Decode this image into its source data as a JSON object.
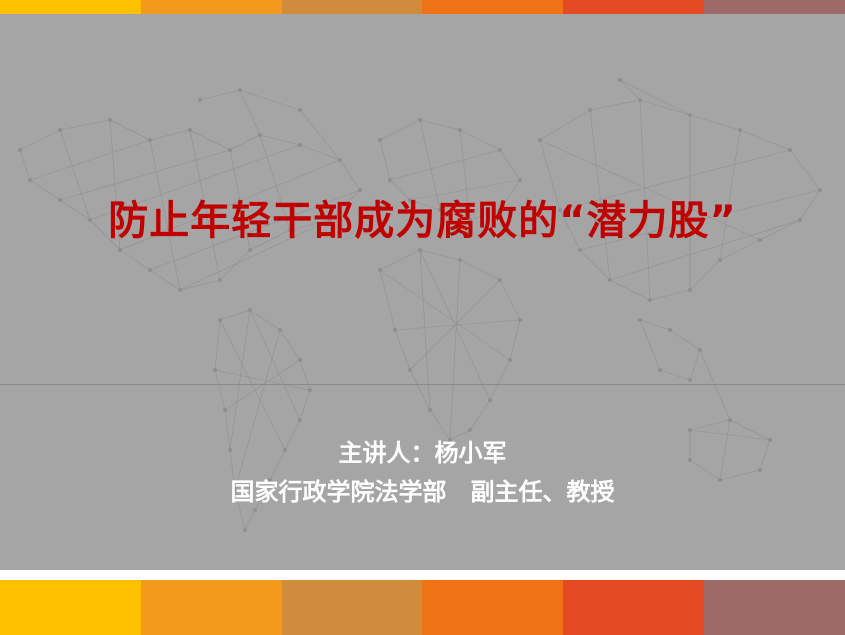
{
  "slide": {
    "title": "防止年轻干部成为腐败的“潜力股”",
    "speaker_line": "主讲人：杨小军",
    "affiliation_line": "国家行政学院法学部　副主任、教授"
  },
  "colors": {
    "background": "#a5a5a5",
    "title_red": "#c00000",
    "strip": [
      "#ffc000",
      "#f39a1d",
      "#d08b3c",
      "#ef7316",
      "#e44a23",
      "#9e6969"
    ]
  }
}
